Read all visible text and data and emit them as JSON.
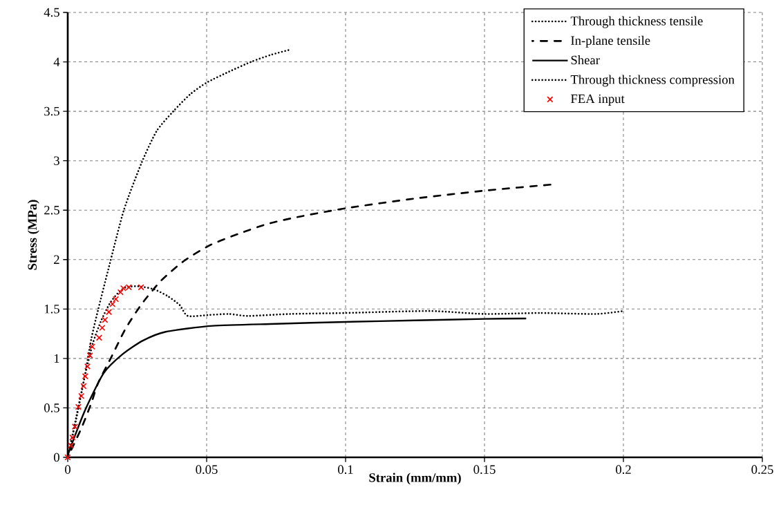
{
  "chart_data": {
    "type": "line",
    "xlabel": "Strain (mm/mm)",
    "ylabel": "Stress (MPa)",
    "xlim": [
      0,
      0.25
    ],
    "ylim": [
      0,
      4.5
    ],
    "xticks": [
      0,
      0.05,
      0.1,
      0.15,
      0.2,
      0.25
    ],
    "yticks": [
      0,
      0.5,
      1,
      1.5,
      2,
      2.5,
      3,
      3.5,
      4,
      4.5
    ],
    "grid": true,
    "legend": "top right",
    "series": [
      {
        "name": "Through thickness tensile",
        "line_style": "dotted",
        "color": "#000000",
        "x": [
          0,
          0.003,
          0.006,
          0.0085,
          0.011,
          0.0146,
          0.0202,
          0.0266,
          0.032,
          0.038,
          0.044,
          0.05,
          0.058,
          0.066,
          0.073,
          0.0796
        ],
        "values": [
          0,
          0.38,
          0.8,
          1.2,
          1.5,
          1.9,
          2.5,
          2.98,
          3.3,
          3.5,
          3.67,
          3.79,
          3.9,
          4.0,
          4.07,
          4.12
        ]
      },
      {
        "name": "In-plane tensile",
        "line_style": "dashdot",
        "color": "#000000",
        "x": [
          0,
          0.005,
          0.0085,
          0.0109,
          0.0158,
          0.0208,
          0.0266,
          0.0337,
          0.042,
          0.0515,
          0.0614,
          0.0718,
          0.0826,
          0.1002,
          0.1256,
          0.151,
          0.1745
        ],
        "values": [
          0,
          0.3,
          0.55,
          0.75,
          1.02,
          1.3,
          1.55,
          1.79,
          1.99,
          2.15,
          2.26,
          2.36,
          2.43,
          2.52,
          2.62,
          2.7,
          2.76
        ]
      },
      {
        "name": "Shear",
        "line_style": "solid",
        "color": "#000000",
        "x": [
          0,
          0.0005,
          0.0063,
          0.0129,
          0.0196,
          0.027,
          0.0353,
          0.0522,
          0.075,
          0.1,
          0.125,
          0.15,
          0.165
        ],
        "values": [
          0,
          0.06,
          0.48,
          0.85,
          1.04,
          1.18,
          1.27,
          1.33,
          1.35,
          1.37,
          1.385,
          1.4,
          1.405
        ]
      },
      {
        "name": "Through thickness compression",
        "line_style": "dotted",
        "color": "#000000",
        "x": [
          0,
          0.003,
          0.006,
          0.009,
          0.012,
          0.015,
          0.018,
          0.021,
          0.0254,
          0.031,
          0.036,
          0.0403,
          0.0432,
          0.051,
          0.058,
          0.065,
          0.08,
          0.1,
          0.13,
          0.15,
          0.17,
          0.19,
          0.2
        ],
        "values": [
          0,
          0.4,
          0.8,
          1.15,
          1.38,
          1.55,
          1.66,
          1.72,
          1.73,
          1.7,
          1.63,
          1.54,
          1.43,
          1.44,
          1.45,
          1.43,
          1.45,
          1.46,
          1.48,
          1.45,
          1.46,
          1.45,
          1.48
        ]
      },
      {
        "name": "FEA input",
        "type": "scatter",
        "marker": "cross",
        "color": "#ff0000",
        "x": [
          0,
          0.0011,
          0.0017,
          0.0026,
          0.0038,
          0.0049,
          0.0057,
          0.0063,
          0.0071,
          0.008,
          0.0088,
          0.0113,
          0.0124,
          0.0134,
          0.0148,
          0.0161,
          0.0173,
          0.019,
          0.02,
          0.022,
          0.0264
        ],
        "values": [
          0,
          0.12,
          0.2,
          0.31,
          0.51,
          0.62,
          0.72,
          0.82,
          0.92,
          1.03,
          1.12,
          1.21,
          1.31,
          1.39,
          1.47,
          1.55,
          1.6,
          1.67,
          1.71,
          1.72,
          1.72
        ]
      }
    ]
  }
}
